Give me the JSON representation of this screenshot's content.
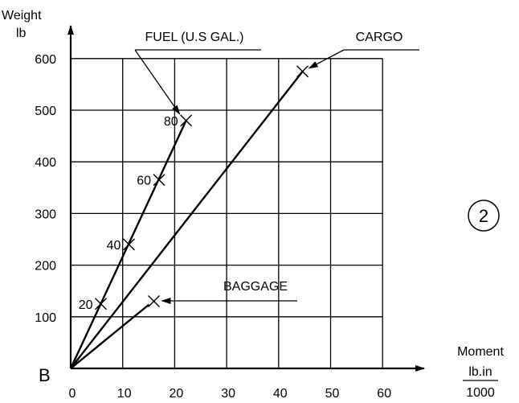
{
  "chart_data": {
    "type": "line",
    "ylabel": [
      "Weight",
      "lb"
    ],
    "xlabel": [
      "Moment",
      "lb.in",
      "1000"
    ],
    "x_ticks": [
      0,
      10,
      20,
      30,
      40,
      50,
      60
    ],
    "y_ticks": [
      100,
      200,
      300,
      400,
      500,
      600
    ],
    "xlim": [
      0,
      60
    ],
    "ylim": [
      0,
      600
    ],
    "origin_label": "B",
    "figure_number": "2",
    "grid": true,
    "series": [
      {
        "name": "FUEL (U.S GAL.)",
        "points": [
          {
            "label": "20",
            "x": 5.8,
            "y": 125
          },
          {
            "label": "40",
            "x": 11.2,
            "y": 240
          },
          {
            "label": "60",
            "x": 17.0,
            "y": 365
          },
          {
            "label": "80",
            "x": 22.2,
            "y": 480
          }
        ],
        "end_x": 22.2,
        "end_y": 480
      },
      {
        "name": "CARGO",
        "points": [
          {
            "label": "",
            "x": 44.6,
            "y": 575
          }
        ],
        "end_x": 44.6,
        "end_y": 575
      },
      {
        "name": "BAGGAGE",
        "points": [
          {
            "label": "",
            "x": 16.0,
            "y": 130
          }
        ],
        "end_x": 16.0,
        "end_y": 130
      }
    ]
  }
}
